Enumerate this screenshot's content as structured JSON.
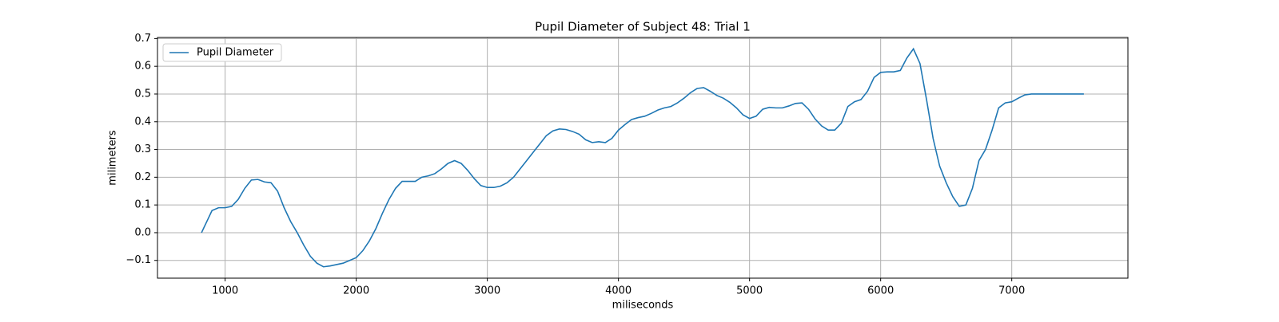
{
  "chart_data": {
    "type": "line",
    "title": "Pupil Diameter of Subject 48: Trial 1",
    "xlabel": "miliseconds",
    "ylabel": "milimeters",
    "x": [
      820,
      870,
      900,
      950,
      1000,
      1050,
      1100,
      1150,
      1200,
      1250,
      1300,
      1350,
      1400,
      1450,
      1500,
      1550,
      1600,
      1650,
      1700,
      1750,
      1800,
      1850,
      1900,
      1950,
      2000,
      2050,
      2100,
      2150,
      2200,
      2250,
      2300,
      2350,
      2400,
      2450,
      2500,
      2550,
      2600,
      2650,
      2700,
      2750,
      2800,
      2850,
      2900,
      2950,
      3000,
      3050,
      3100,
      3150,
      3200,
      3250,
      3300,
      3350,
      3400,
      3450,
      3500,
      3550,
      3600,
      3650,
      3700,
      3750,
      3800,
      3850,
      3900,
      3950,
      4000,
      4050,
      4100,
      4150,
      4200,
      4250,
      4300,
      4350,
      4400,
      4450,
      4500,
      4550,
      4600,
      4650,
      4700,
      4750,
      4800,
      4850,
      4900,
      4950,
      5000,
      5050,
      5100,
      5150,
      5200,
      5250,
      5300,
      5350,
      5400,
      5450,
      5500,
      5550,
      5600,
      5650,
      5700,
      5750,
      5800,
      5850,
      5900,
      5950,
      6000,
      6050,
      6100,
      6150,
      6200,
      6250,
      6300,
      6350,
      6400,
      6450,
      6500,
      6550,
      6600,
      6650,
      6700,
      6750,
      6800,
      6850,
      6900,
      6950,
      7000,
      7050,
      7100,
      7150,
      7200,
      7300,
      7400,
      7500,
      7550
    ],
    "series": [
      {
        "name": "Pupil Diameter",
        "color": "#1f77b4",
        "values": [
          0.0,
          0.05,
          0.08,
          0.09,
          0.09,
          0.095,
          0.12,
          0.16,
          0.19,
          0.192,
          0.183,
          0.18,
          0.15,
          0.09,
          0.04,
          0.0,
          -0.045,
          -0.085,
          -0.11,
          -0.123,
          -0.12,
          -0.115,
          -0.11,
          -0.1,
          -0.09,
          -0.065,
          -0.03,
          0.015,
          0.07,
          0.12,
          0.16,
          0.185,
          0.185,
          0.185,
          0.2,
          0.205,
          0.213,
          0.23,
          0.25,
          0.26,
          0.25,
          0.225,
          0.195,
          0.17,
          0.163,
          0.163,
          0.168,
          0.18,
          0.2,
          0.23,
          0.26,
          0.29,
          0.32,
          0.35,
          0.367,
          0.374,
          0.372,
          0.365,
          0.355,
          0.335,
          0.325,
          0.328,
          0.325,
          0.34,
          0.37,
          0.39,
          0.408,
          0.415,
          0.42,
          0.43,
          0.442,
          0.45,
          0.455,
          0.468,
          0.485,
          0.505,
          0.52,
          0.523,
          0.51,
          0.495,
          0.485,
          0.47,
          0.45,
          0.425,
          0.412,
          0.42,
          0.445,
          0.452,
          0.45,
          0.45,
          0.457,
          0.466,
          0.468,
          0.445,
          0.41,
          0.385,
          0.37,
          0.37,
          0.395,
          0.455,
          0.472,
          0.48,
          0.51,
          0.56,
          0.578,
          0.58,
          0.58,
          0.585,
          0.63,
          0.663,
          0.61,
          0.48,
          0.34,
          0.24,
          0.18,
          0.13,
          0.095,
          0.1,
          0.16,
          0.26,
          0.3,
          0.37,
          0.45,
          0.468,
          0.472,
          0.485,
          0.497,
          0.5,
          0.5,
          0.5,
          0.5,
          0.5,
          0.5
        ]
      }
    ],
    "xlim": [
      484,
      7886
    ],
    "ylim": [
      -0.164,
      0.704
    ],
    "xticks": [
      1000,
      2000,
      3000,
      4000,
      5000,
      6000,
      7000
    ],
    "yticks": [
      {
        "value": -0.1,
        "label": "−0.1"
      },
      {
        "value": 0,
        "label": "0.0"
      },
      0.1,
      0.2,
      0.3,
      0.4,
      0.5,
      0.6,
      0.7
    ],
    "grid": true,
    "legend": "upper left"
  }
}
